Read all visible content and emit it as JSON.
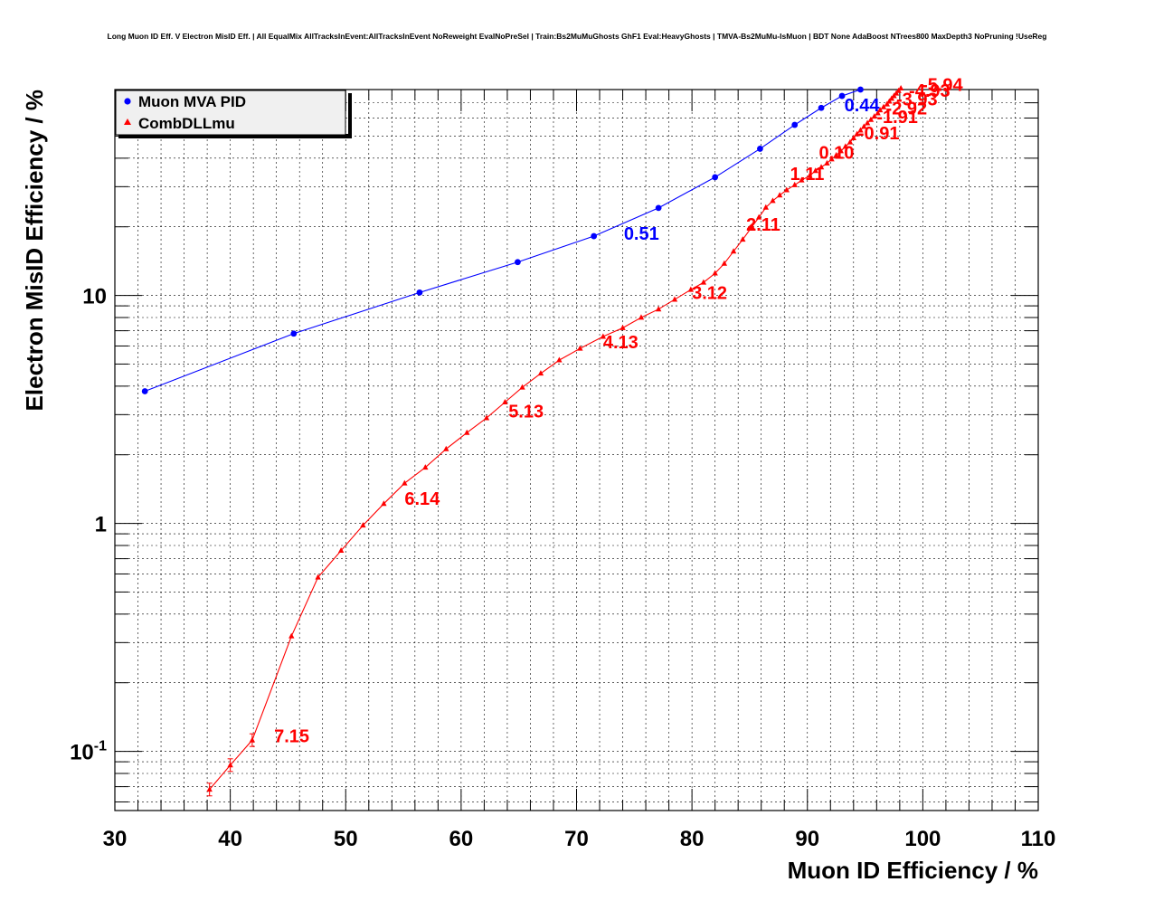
{
  "chart_data": {
    "type": "line",
    "title": "Long Muon ID Eff. V Electron MisID Eff. | All EqualMix AllTracksInEvent:AllTracksInEvent NoReweight EvalNoPreSel | Train:Bs2MuMuGhosts GhF1 Eval:HeavyGhosts | TMVA-Bs2MuMu-IsMuon | BDT None AdaBoost NTrees800 MaxDepth3 NoPruning !UseReg",
    "xlabel": "Muon ID Efficiency / %",
    "ylabel": "Electron MisID Efficiency / %",
    "xlim": [
      30,
      110
    ],
    "ylim": [
      0.055,
      80
    ],
    "yscale": "log",
    "grid": true,
    "legend_position": "top-left",
    "x_ticks": [
      "30",
      "40",
      "50",
      "60",
      "70",
      "80",
      "90",
      "100",
      "110"
    ],
    "y_ticks": [
      {
        "value": 0.1,
        "base": "10",
        "exp": "-1"
      },
      {
        "value": 1,
        "base": "1",
        "exp": ""
      },
      {
        "value": 10,
        "base": "10",
        "exp": ""
      }
    ],
    "series": [
      {
        "name": "Muon MVA PID",
        "color": "#0000ff",
        "marker": "circle",
        "x": [
          32.6,
          45.5,
          56.4,
          64.9,
          71.5,
          77.1,
          82.0,
          85.9,
          88.9,
          91.2,
          93.0,
          94.6
        ],
        "y": [
          3.8,
          6.8,
          10.3,
          14.0,
          18.2,
          24.2,
          33.0,
          44.0,
          56.0,
          66.5,
          75.0,
          80.0
        ],
        "annotations": [
          {
            "text": "0.51",
            "x": 74.1,
            "y": 18.9
          },
          {
            "text": "0.44",
            "x": 93.2,
            "y": 69.0
          }
        ]
      },
      {
        "name": "CombDLLmu",
        "color": "#ff0000",
        "marker": "triangle",
        "x": [
          36.2,
          38.2,
          40.0,
          41.9,
          45.3,
          47.6,
          49.6,
          51.5,
          53.3,
          55.1,
          56.9,
          58.7,
          60.5,
          62.2,
          63.8,
          65.3,
          66.9,
          68.5,
          70.3,
          72.3,
          74.0,
          75.6,
          77.1,
          78.5,
          79.9,
          81.0,
          82.0,
          82.8,
          83.6,
          84.4,
          85.2,
          85.8,
          86.4,
          87.0,
          87.6,
          88.2,
          88.9,
          89.5,
          90.2,
          90.7,
          91.2,
          91.7,
          92.1,
          92.5,
          92.9,
          93.3,
          93.7,
          94.0,
          94.3,
          94.6,
          94.9,
          95.2,
          95.5,
          95.8,
          96.1,
          96.3,
          96.6,
          96.9,
          97.1,
          97.3,
          97.5,
          97.7,
          97.9,
          98.1,
          98.3,
          98.5
        ],
        "y": [
          0.052,
          0.068,
          0.087,
          0.112,
          0.32,
          0.58,
          0.76,
          0.98,
          1.22,
          1.5,
          1.76,
          2.12,
          2.5,
          2.9,
          3.4,
          3.95,
          4.55,
          5.2,
          5.85,
          6.6,
          7.2,
          8.0,
          8.7,
          9.6,
          10.6,
          11.4,
          12.5,
          13.8,
          15.6,
          17.6,
          20.0,
          22.0,
          24.3,
          26.0,
          27.5,
          29.0,
          30.5,
          32.0,
          33.5,
          35.2,
          36.5,
          38.0,
          39.6,
          41.2,
          43.0,
          45.0,
          47.0,
          49.0,
          51.0,
          53.0,
          55.0,
          57.0,
          59.0,
          61.0,
          63.0,
          65.0,
          67.0,
          69.0,
          71.0,
          73.0,
          75.0,
          77.0,
          79.0,
          81.0,
          83.0,
          85.0
        ],
        "annotations": [
          {
            "text": "7.15",
            "x": 43.8,
            "y": 0.118
          },
          {
            "text": "6.14",
            "x": 55.1,
            "y": 1.3
          },
          {
            "text": "5.13",
            "x": 64.1,
            "y": 3.14
          },
          {
            "text": "4.13",
            "x": 72.3,
            "y": 6.3
          },
          {
            "text": "3.12",
            "x": 80.0,
            "y": 10.4
          },
          {
            "text": "2.11",
            "x": 84.7,
            "y": 20.7
          },
          {
            "text": "1.11",
            "x": 88.5,
            "y": 34.5
          },
          {
            "text": "0.10",
            "x": 91.0,
            "y": 42.7
          },
          {
            "text": "-0.91",
            "x": 94.4,
            "y": 52.0
          },
          {
            "text": "-1.91",
            "x": 96.0,
            "y": 61.3
          },
          {
            "text": "-2.92",
            "x": 96.8,
            "y": 67.0
          },
          {
            "text": "-3.93",
            "x": 97.7,
            "y": 73.5
          },
          {
            "text": "-4.93",
            "x": 98.8,
            "y": 80.0
          },
          {
            "text": "-5.94",
            "x": 99.9,
            "y": 85.0
          }
        ]
      }
    ]
  }
}
